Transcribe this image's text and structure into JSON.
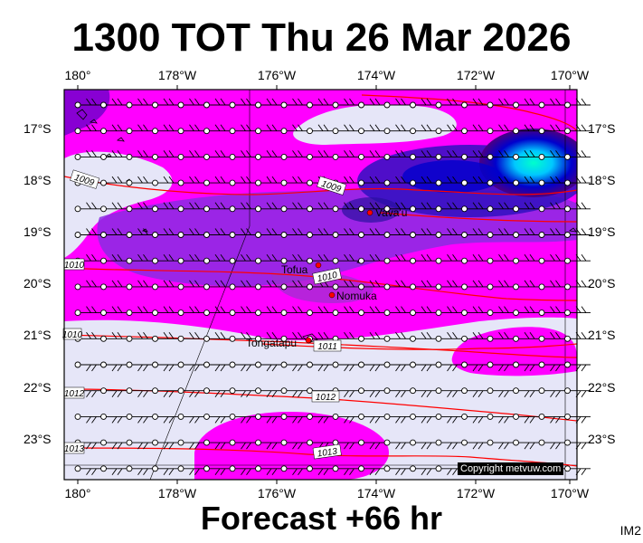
{
  "title": "1300 TOT Thu 26 Mar 2026",
  "footer": "Forecast +66 hr",
  "tag": "IM2",
  "copyright": "Copyright metvuw.com",
  "lon_labels": [
    "180°",
    "178°W",
    "176°W",
    "174°W",
    "172°W",
    "170°W"
  ],
  "lat_labels": [
    "17°S",
    "18°S",
    "19°S",
    "20°S",
    "21°S",
    "22°S",
    "23°S"
  ],
  "places": [
    {
      "name": "Vava'u",
      "lon": -174.0,
      "lat": -18.65
    },
    {
      "name": "Tofua",
      "lon": -175.05,
      "lat": -19.75
    },
    {
      "name": "Nomuka",
      "lon": -174.8,
      "lat": -20.25
    },
    {
      "name": "Tongatapu",
      "lon": -175.2,
      "lat": -21.13
    }
  ],
  "isobar_labels": [
    "1009",
    "1009",
    "1010",
    "1010",
    "1010",
    "1011",
    "1012",
    "1012",
    "1013",
    "1013"
  ],
  "colors": {
    "background": "#ffffff",
    "ocean_calm": "#e6e6f8",
    "rain_light": "#ff00ff",
    "rain_moderate": "#8a2be2",
    "rain_heavy": "#0000cd",
    "rain_very_heavy": "#00ffcc",
    "isobar": "#ff0000",
    "place_marker": "#ff0000"
  }
}
